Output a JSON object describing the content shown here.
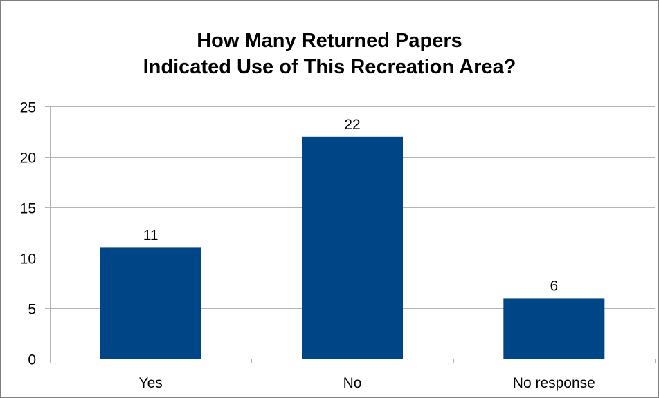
{
  "chart_data": {
    "type": "bar",
    "title_line1": "How Many Returned Papers",
    "title_line2": "Indicated Use of This Recreation Area?",
    "categories": [
      "Yes",
      "No",
      "No response"
    ],
    "values": [
      11,
      22,
      6
    ],
    "data_labels": [
      "11",
      "22",
      "6"
    ],
    "ylim": [
      0,
      25
    ],
    "yticks": [
      0,
      5,
      10,
      15,
      20,
      25
    ],
    "grid": true,
    "legend": false,
    "colors": {
      "bar": "#004586",
      "grid": "#b3b3b3",
      "axis": "#b3b3b3"
    }
  }
}
